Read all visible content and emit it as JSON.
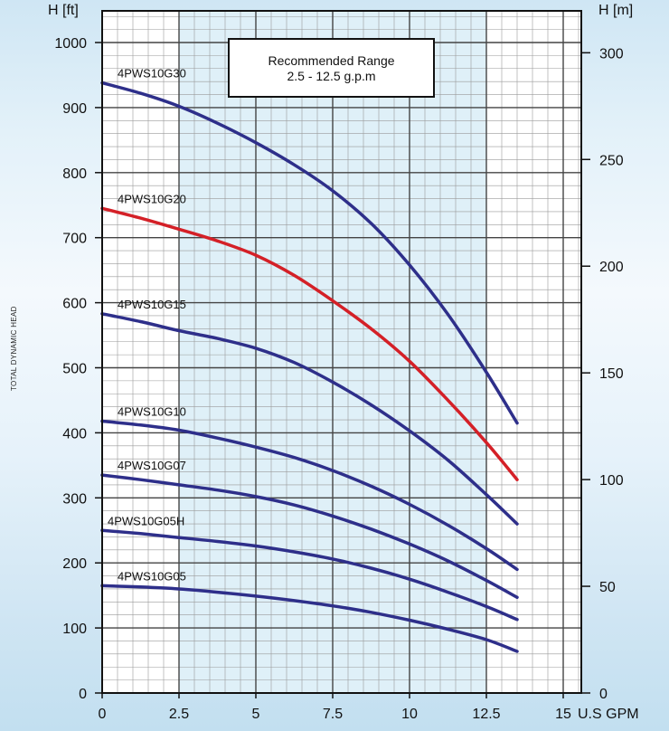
{
  "chart_data": {
    "type": "line",
    "y_label_left": "H [ft]",
    "y_label_right": "H [m]",
    "x_label": "U.S GPM",
    "side_label": "TOTAL DYNAMIC HEAD",
    "annotation": {
      "line1": "Recommended Range",
      "line2": "2.5 - 12.5 g.p.m"
    },
    "recommended_range": [
      2.5,
      12.5
    ],
    "xlim": [
      0,
      15
    ],
    "ylim_left": [
      0,
      1000
    ],
    "ylim_right": [
      0,
      300
    ],
    "x_ticks": [
      0,
      2.5,
      5,
      7.5,
      10,
      12.5,
      15
    ],
    "x_tick_labels": [
      "0",
      "2.5",
      "5",
      "7.5",
      "10",
      "12.5",
      "15"
    ],
    "y_ticks_left": [
      0,
      100,
      200,
      300,
      400,
      500,
      600,
      700,
      800,
      900,
      1000
    ],
    "y_tick_labels_left": [
      "0",
      "100",
      "200",
      "300",
      "400",
      "500",
      "600",
      "700",
      "800",
      "900",
      "1000"
    ],
    "y_ticks_right": [
      0,
      50,
      100,
      150,
      200,
      250,
      300
    ],
    "y_tick_labels_right": [
      "0",
      "50",
      "100",
      "150",
      "200",
      "250",
      "300"
    ],
    "series": [
      {
        "name": "4PWS10G30",
        "color": "#2e2f8a",
        "x": [
          0,
          1.25,
          2.5,
          3.75,
          5,
          6.25,
          7.5,
          8.75,
          10,
          11.25,
          12.5,
          13.5
        ],
        "y": [
          938,
          922,
          902,
          876,
          846,
          812,
          772,
          722,
          658,
          582,
          493,
          415
        ]
      },
      {
        "name": "4PWS10G20",
        "color": "#d42027",
        "x": [
          0,
          1.25,
          2.5,
          3.75,
          5,
          6.25,
          7.5,
          8.75,
          10,
          11.25,
          12.5,
          13.5
        ],
        "y": [
          745,
          730,
          713,
          695,
          673,
          642,
          603,
          560,
          510,
          450,
          385,
          328
        ]
      },
      {
        "name": "4PWS10G15",
        "color": "#2e2f8a",
        "x": [
          0,
          1.25,
          2.5,
          3.75,
          5,
          6.25,
          7.5,
          8.75,
          10,
          11.25,
          12.5,
          13.5
        ],
        "y": [
          583,
          571,
          557,
          545,
          530,
          508,
          478,
          443,
          403,
          358,
          305,
          260
        ]
      },
      {
        "name": "4PWS10G10",
        "color": "#2e2f8a",
        "x": [
          0,
          1.25,
          2.5,
          3.75,
          5,
          6.25,
          7.5,
          8.75,
          10,
          11.25,
          12.5,
          13.5
        ],
        "y": [
          418,
          412,
          404,
          392,
          378,
          362,
          342,
          318,
          290,
          258,
          222,
          190
        ]
      },
      {
        "name": "4PWS10G07",
        "color": "#2e2f8a",
        "x": [
          0,
          1.25,
          2.5,
          3.75,
          5,
          6.25,
          7.5,
          8.75,
          10,
          11.25,
          12.5,
          13.5
        ],
        "y": [
          335,
          328,
          320,
          312,
          302,
          289,
          272,
          252,
          229,
          203,
          173,
          147
        ]
      },
      {
        "name": "4PWS10G05H",
        "color": "#2e2f8a",
        "x": [
          0,
          1.25,
          2.5,
          3.75,
          5,
          6.25,
          7.5,
          8.75,
          10,
          11.25,
          12.5,
          13.5
        ],
        "y": [
          250,
          245,
          239,
          233,
          226,
          217,
          206,
          192,
          175,
          155,
          133,
          113
        ]
      },
      {
        "name": "4PWS10G05",
        "color": "#2e2f8a",
        "x": [
          0,
          1.25,
          2.5,
          3.75,
          5,
          6.25,
          7.5,
          8.75,
          10,
          11.25,
          12.5,
          13.5
        ],
        "y": [
          165,
          163,
          160,
          155,
          149,
          142,
          134,
          124,
          112,
          98,
          82,
          64
        ]
      }
    ]
  }
}
